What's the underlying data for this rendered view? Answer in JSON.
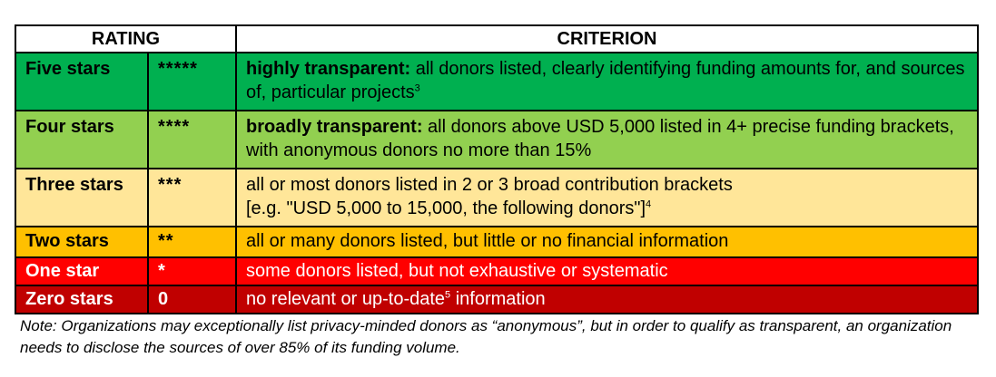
{
  "header": {
    "rating": "RATING",
    "criterion": "CRITERION"
  },
  "rows": [
    {
      "label": "Five stars",
      "stars": "*****",
      "bold": "highly transparent:",
      "text": " all donors listed, clearly identifying funding amounts for, and sources of, particular projects",
      "sup": "3",
      "color": "#00b050"
    },
    {
      "label": "Four stars",
      "stars": "****",
      "bold": "broadly transparent:",
      "text": " all donors above USD 5,000 listed in 4+ precise funding brackets, with anonymous donors no more than 15%",
      "sup": "",
      "color": "#92d050"
    },
    {
      "label": "Three stars",
      "stars": "***",
      "bold": "",
      "line1": "all or most donors listed in 2 or 3 broad contribution brackets",
      "line2": "[e.g. \"USD 5,000 to 15,000, the following donors\"]",
      "sup": "4",
      "color": "#ffe699"
    },
    {
      "label": "Two stars",
      "stars": "**",
      "bold": "",
      "text": "all or many donors listed, but little or no financial information",
      "sup": "",
      "color": "#ffc000"
    },
    {
      "label": "One star",
      "stars": "*",
      "bold": "",
      "text": "some donors listed, but not exhaustive or systematic",
      "sup": "",
      "color": "#ff0000"
    },
    {
      "label": "Zero stars",
      "stars": "0",
      "bold": "",
      "pre": "no relevant or up-to-date",
      "sup": "5",
      "post": " information",
      "color": "#c00000"
    }
  ],
  "note": "Note: Organizations may exceptionally list privacy-minded donors as “anonymous”, but in order to qualify as transparent, an organization needs to disclose the sources of over 85% of its funding volume."
}
